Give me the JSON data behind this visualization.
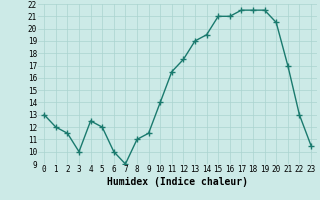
{
  "x": [
    0,
    1,
    2,
    3,
    4,
    5,
    6,
    7,
    8,
    9,
    10,
    11,
    12,
    13,
    14,
    15,
    16,
    17,
    18,
    19,
    20,
    21,
    22,
    23
  ],
  "y": [
    13,
    12,
    11.5,
    10,
    12.5,
    12,
    10,
    9,
    11,
    11.5,
    14,
    16.5,
    17.5,
    19,
    19.5,
    21,
    21,
    21.5,
    21.5,
    21.5,
    20.5,
    17,
    13,
    10.5
  ],
  "line_color": "#1a7a6e",
  "marker": "+",
  "bg_color": "#cceae7",
  "grid_color": "#aad4d0",
  "xlabel": "Humidex (Indice chaleur)",
  "ylim": [
    9,
    22
  ],
  "yticks": [
    9,
    10,
    11,
    12,
    13,
    14,
    15,
    16,
    17,
    18,
    19,
    20,
    21,
    22
  ],
  "xticks": [
    0,
    1,
    2,
    3,
    4,
    5,
    6,
    7,
    8,
    9,
    10,
    11,
    12,
    13,
    14,
    15,
    16,
    17,
    18,
    19,
    20,
    21,
    22,
    23
  ],
  "tick_fontsize": 5.5,
  "xlabel_fontsize": 7,
  "line_width": 1.0,
  "marker_size": 4,
  "marker_edge_width": 1.0
}
